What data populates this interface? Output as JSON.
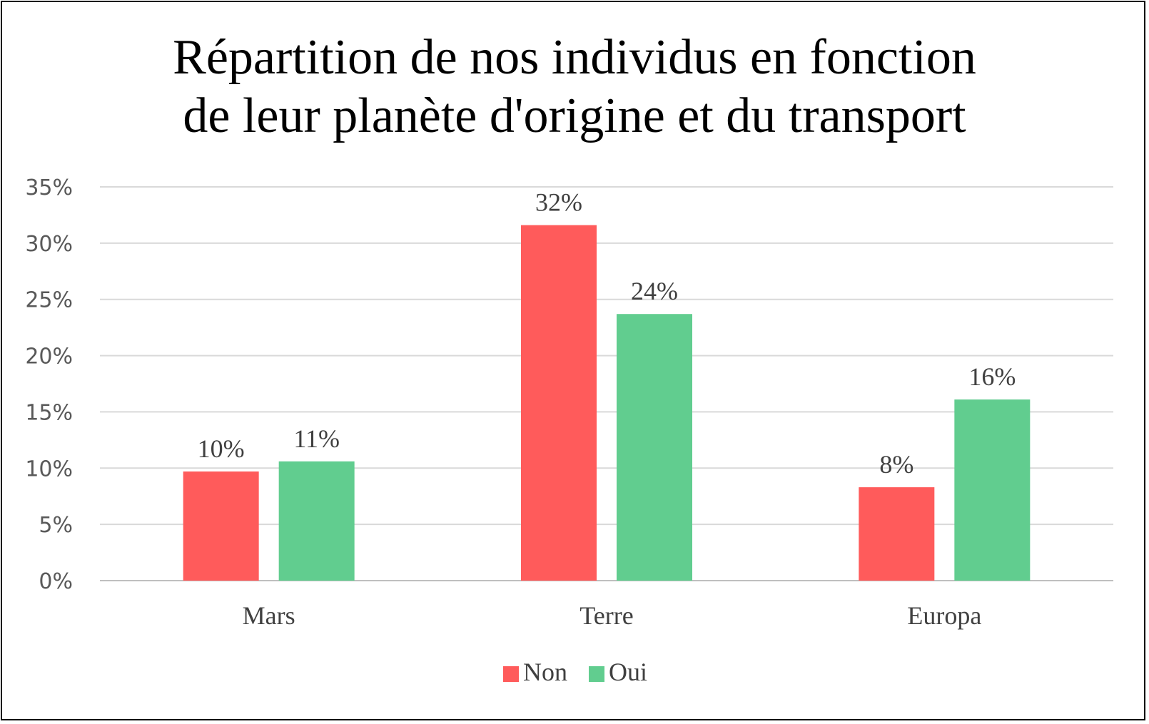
{
  "chart_data": {
    "type": "bar",
    "title_lines": [
      "Répartition de nos individus en fonction",
      "de leur planète d'origine et du transport"
    ],
    "categories": [
      "Mars",
      "Terre",
      "Europa"
    ],
    "series": [
      {
        "name": "Non",
        "color": "#ff5b5b",
        "values": [
          9.7,
          31.6,
          8.3
        ],
        "labels": [
          "10%",
          "32%",
          "8%"
        ]
      },
      {
        "name": "Oui",
        "color": "#61cd8f",
        "values": [
          10.6,
          23.7,
          16.1
        ],
        "labels": [
          "11%",
          "24%",
          "16%"
        ]
      }
    ],
    "ylim": [
      0,
      35
    ],
    "yticks": [
      0,
      5,
      10,
      15,
      20,
      25,
      30,
      35
    ],
    "ytick_labels": [
      "0%",
      "5%",
      "10%",
      "15%",
      "20%",
      "25%",
      "30%",
      "35%"
    ],
    "grid": true,
    "legend_position": "bottom"
  }
}
